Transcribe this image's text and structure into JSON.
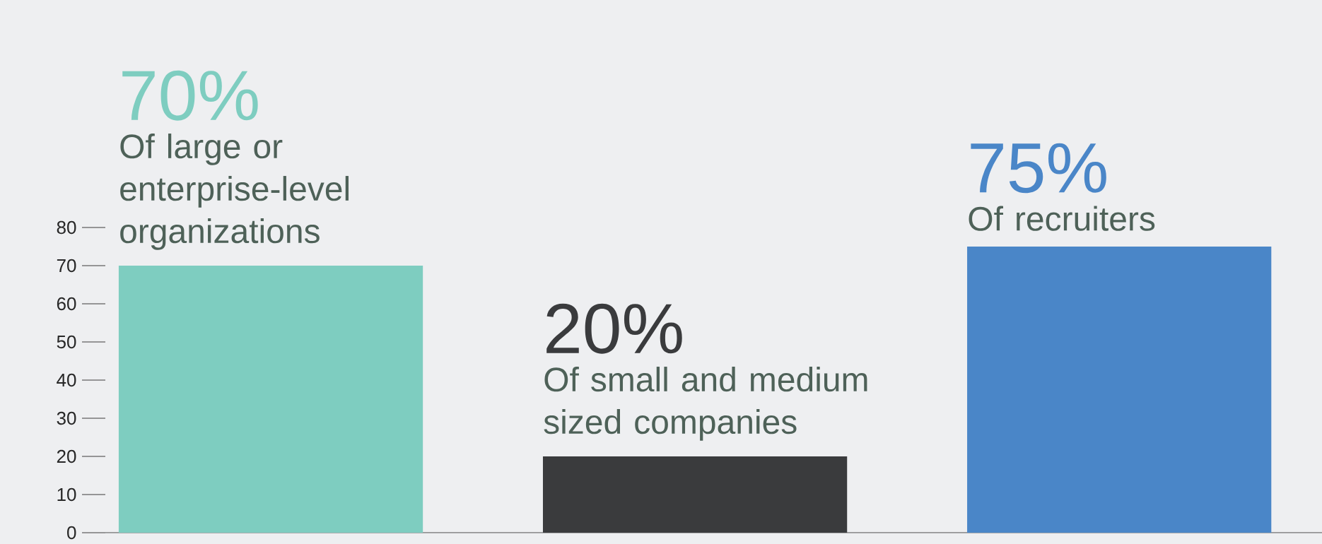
{
  "chart_data": {
    "type": "bar",
    "categories": [
      "Of large or enterprise-level organizations",
      "Of small and medium sized companies",
      "Of recruiters"
    ],
    "values": [
      70,
      20,
      75
    ],
    "colors": [
      "#7ecdc0",
      "#3a3b3d",
      "#4a86c8"
    ],
    "value_labels": [
      "70%",
      "20%",
      "75%"
    ],
    "ylim": [
      0,
      80
    ],
    "yticks": [
      0,
      10,
      20,
      30,
      40,
      50,
      60,
      70,
      80
    ]
  }
}
